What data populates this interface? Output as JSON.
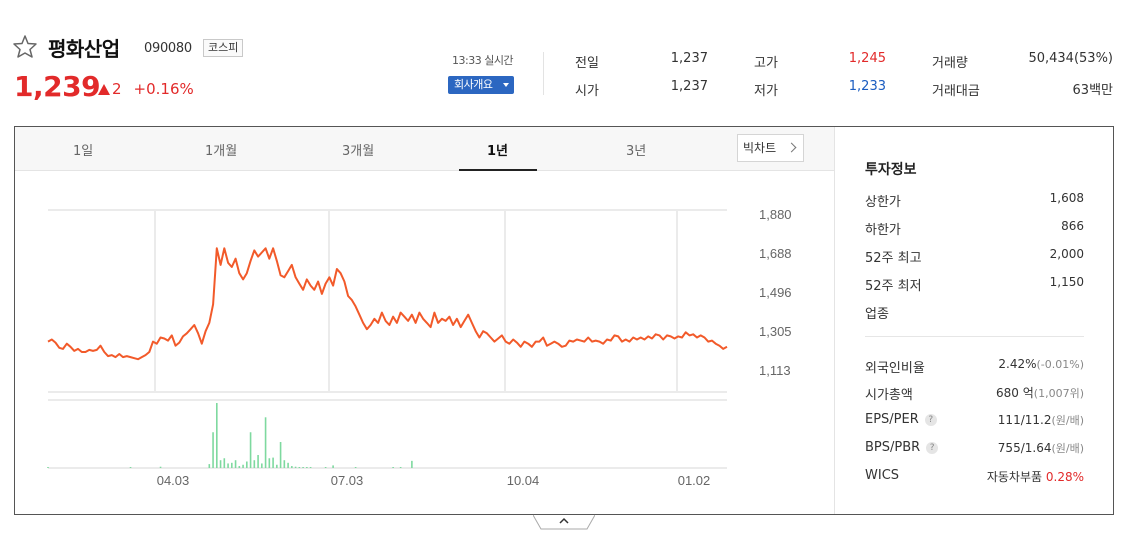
{
  "header": {
    "name": "평화산업",
    "code": "090080",
    "market": "코스피",
    "price": "1,239",
    "change": "2",
    "change_rate": "+0.16%",
    "realtime": "13:33 실시간",
    "company_btn": "회사개요",
    "up_color": "#e22a2a"
  },
  "stats": {
    "prev_close": {
      "label": "전일",
      "value": "1,237"
    },
    "open": {
      "label": "시가",
      "value": "1,237"
    },
    "high": {
      "label": "고가",
      "value": "1,245"
    },
    "low": {
      "label": "저가",
      "value": "1,233"
    },
    "volume": {
      "label": "거래량",
      "value": "50,434(53%)"
    },
    "amount": {
      "label": "거래대금",
      "value": "63백만"
    }
  },
  "tabs": [
    "1일",
    "1개월",
    "3개월",
    "1년",
    "3년"
  ],
  "active_tab": "1년",
  "bigchart": "빅차트",
  "chart_data": {
    "type": "line",
    "title": "",
    "y_ticks": [
      "1,880",
      "1,688",
      "1,496",
      "1,305",
      "1,113"
    ],
    "ylim": [
      1113,
      1880
    ],
    "x_ticks": [
      "04.03",
      "07.03",
      "10.04",
      "01.02"
    ],
    "series": [
      {
        "values": [
          1250,
          1260,
          1245,
          1220,
          1215,
          1240,
          1225,
          1205,
          1215,
          1200,
          1200,
          1210,
          1205,
          1210,
          1230,
          1200,
          1180,
          1185,
          1175,
          1190,
          1175,
          1180,
          1175,
          1170,
          1165,
          1175,
          1185,
          1200,
          1250,
          1240,
          1270,
          1265,
          1255,
          1280,
          1230,
          1245,
          1275,
          1290,
          1310,
          1330,
          1290,
          1240,
          1300,
          1340,
          1430,
          1700,
          1620,
          1700,
          1630,
          1610,
          1650,
          1580,
          1550,
          1580,
          1640,
          1690,
          1660,
          1680,
          1700,
          1650,
          1700,
          1640,
          1570,
          1560,
          1590,
          1620,
          1560,
          1530,
          1500,
          1550,
          1520,
          1500,
          1540,
          1480,
          1530,
          1560,
          1520,
          1600,
          1580,
          1540,
          1470,
          1450,
          1420,
          1380,
          1340,
          1310,
          1330,
          1360,
          1340,
          1390,
          1350,
          1330,
          1370,
          1340,
          1390,
          1370,
          1350,
          1380,
          1340,
          1390,
          1360,
          1340,
          1320,
          1390,
          1340,
          1360,
          1350,
          1370,
          1330,
          1360,
          1320,
          1350,
          1380,
          1340,
          1300,
          1270,
          1300,
          1290,
          1270,
          1250,
          1265,
          1280,
          1250,
          1240,
          1260,
          1245,
          1225,
          1250,
          1240,
          1225,
          1250,
          1250,
          1270,
          1230,
          1240,
          1250,
          1240,
          1225,
          1230,
          1255,
          1250,
          1260,
          1255,
          1250,
          1270,
          1250,
          1255,
          1250,
          1240,
          1260,
          1255,
          1280,
          1275,
          1250,
          1260,
          1250,
          1270,
          1260,
          1270,
          1260,
          1275,
          1265,
          1285,
          1280,
          1260,
          1280,
          1275,
          1265,
          1275,
          1270,
          1295,
          1280,
          1285,
          1270,
          1280,
          1270,
          1250,
          1255,
          1240,
          1230,
          1215,
          1225
        ]
      }
    ],
    "volume_relative": [
      0.01,
      0,
      0,
      0,
      0,
      0,
      0,
      0,
      0,
      0,
      0,
      0,
      0,
      0,
      0,
      0,
      0,
      0,
      0,
      0,
      0,
      0,
      0.01,
      0,
      0,
      0,
      0,
      0,
      0,
      0,
      0.02,
      0,
      0,
      0,
      0,
      0,
      0,
      0,
      0,
      0,
      0,
      0,
      0,
      0.06,
      0.55,
      1.0,
      0.12,
      0.15,
      0.07,
      0.08,
      0.12,
      0.03,
      0.05,
      0.1,
      0.55,
      0.12,
      0.2,
      0.07,
      0.78,
      0.15,
      0.16,
      0.05,
      0.4,
      0.12,
      0.08,
      0.03,
      0.02,
      0.01,
      0.01,
      0.01,
      0.01,
      0,
      0,
      0,
      0.01,
      0,
      0.04,
      0,
      0,
      0,
      0,
      0,
      0.01,
      0,
      0,
      0,
      0,
      0,
      0,
      0,
      0,
      0,
      0.01,
      0,
      0.01,
      0,
      0,
      0.11,
      0,
      0,
      0,
      0,
      0,
      0,
      0,
      0,
      0,
      0,
      0,
      0,
      0,
      0,
      0,
      0,
      0,
      0,
      0,
      0,
      0,
      0,
      0,
      0,
      0,
      0,
      0,
      0,
      0,
      0,
      0,
      0,
      0,
      0,
      0,
      0,
      0,
      0,
      0,
      0,
      0,
      0,
      0,
      0,
      0,
      0,
      0,
      0,
      0,
      0,
      0,
      0,
      0,
      0,
      0,
      0,
      0,
      0,
      0,
      0,
      0,
      0,
      0,
      0,
      0,
      0,
      0,
      0,
      0,
      0,
      0,
      0,
      0,
      0,
      0,
      0,
      0,
      0,
      0,
      0,
      0,
      0,
      0,
      0
    ],
    "line_color": "#f25a2a",
    "volume_color": "#7ed99f",
    "grid": true
  },
  "invest": {
    "title": "투자정보",
    "upper_limit": {
      "label": "상한가",
      "value": "1,608"
    },
    "lower_limit": {
      "label": "하한가",
      "value": "866"
    },
    "high52": {
      "label": "52주 최고",
      "value": "2,000"
    },
    "low52": {
      "label": "52주 최저",
      "value": "1,150"
    },
    "sector": {
      "label": "업종",
      "value": ""
    },
    "foreign": {
      "label": "외국인비율",
      "value": "2.42%",
      "sub": "(-0.01%)"
    },
    "market_cap": {
      "label": "시가총액",
      "value": "680 억",
      "sub": "(1,007위)"
    },
    "eps_per": {
      "label": "EPS/PER",
      "value": "111/11.2",
      "sub": "(원/배)"
    },
    "bps_pbr": {
      "label": "BPS/PBR",
      "value": "755/1.64",
      "sub": "(원/배)"
    },
    "wics": {
      "label": "WICS",
      "value": "자동차부품",
      "rate": "0.28%"
    }
  }
}
